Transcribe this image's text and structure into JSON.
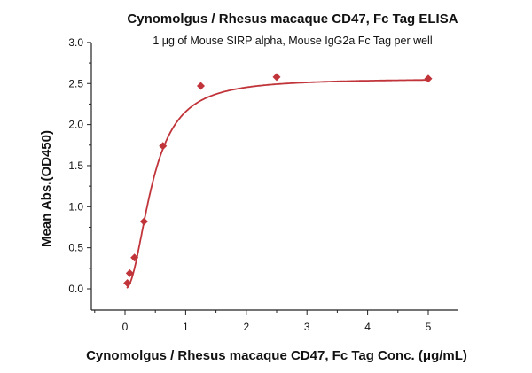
{
  "chart_data": {
    "type": "scatter",
    "title": "Cynomolgus / Rhesus macaque CD47, Fc Tag ELISA",
    "subtitle": "1 μg of Mouse SIRP alpha, Mouse IgG2a Fc Tag per well",
    "xlabel": "Cynomolgus / Rhesus macaque CD47, Fc Tag Conc. (μg/mL)",
    "ylabel": "Mean Abs.(OD450)",
    "xlim": [
      -0.55,
      5.5
    ],
    "ylim": [
      -0.25,
      3.0
    ],
    "xticks": [
      0,
      1,
      2,
      3,
      4,
      5
    ],
    "xtick_labels": [
      "0",
      "1",
      "2",
      "3",
      "4",
      "5"
    ],
    "yticks": [
      0.0,
      0.5,
      1.0,
      1.5,
      2.0,
      2.5,
      3.0
    ],
    "ytick_labels": [
      "0.0",
      "0.5",
      "1.0",
      "1.5",
      "2.0",
      "2.5",
      "3.0"
    ],
    "grid": false,
    "color": "#c0343a",
    "series": [
      {
        "name": "data",
        "marker": "diamond",
        "x": [
          0.039,
          0.078,
          0.156,
          0.3125,
          0.625,
          1.25,
          2.5,
          5
        ],
        "y": [
          0.07,
          0.19,
          0.38,
          0.82,
          1.74,
          2.47,
          2.58,
          2.56
        ]
      }
    ],
    "fit": {
      "model": "4PL",
      "bottom": 0.0,
      "top": 2.56,
      "ec50": 0.45,
      "hill": 2.1
    }
  }
}
